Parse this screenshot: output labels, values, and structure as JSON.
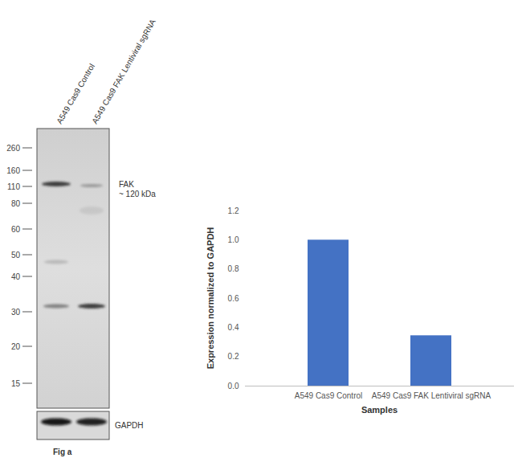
{
  "chart_data": {
    "type": "bar",
    "categories": [
      "A549 Cas9 Control",
      "A549 Cas9 FAK Lentiviral sgRNA"
    ],
    "values": [
      1,
      0.345
    ],
    "color": "#4472c4",
    "xlabel": "Samples",
    "ylabel": "Expression normalized to GAPDH",
    "ylim": [
      0,
      1.2
    ],
    "yticks": [
      0,
      0.2,
      0.4,
      0.6,
      0.8,
      1,
      1.2
    ],
    "grid": false
  },
  "blot": {
    "lanes": [
      "A549 Cas9 Control",
      "A549 Cas9 FAK Lentiviral sgRNA"
    ],
    "markers": [
      260,
      160,
      110,
      80,
      60,
      50,
      40,
      30,
      20,
      15
    ],
    "band_label": "FAK",
    "band_size": "~ 120 kDa",
    "loading_control": "GAPDH",
    "figure_label": "Fig a"
  }
}
